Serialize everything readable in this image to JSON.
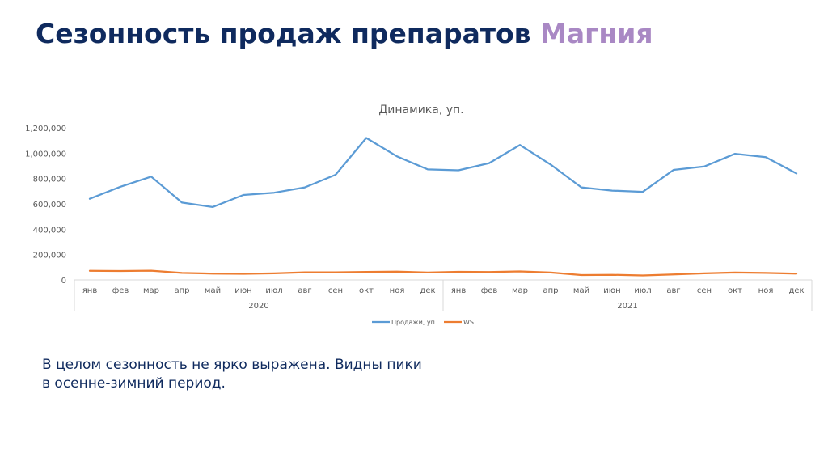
{
  "slide": {
    "title_main": "Сезонность продаж препаратов",
    "title_accent": "Магния",
    "note": "В целом сезонность не ярко выражена. Видны пики в осенне-зимний период."
  },
  "colors": {
    "title": "#0f2a5e",
    "accent": "#a988c4",
    "sales": "#5b9bd5",
    "ws": "#ed7d31"
  },
  "chart_data": {
    "type": "line",
    "title": "Динамика, уп.",
    "xlabel": "",
    "ylabel": "",
    "ylim": [
      0,
      1200000
    ],
    "yticks": [
      0,
      200000,
      400000,
      600000,
      800000,
      1000000,
      1200000
    ],
    "ytick_labels": [
      "0",
      "200,000",
      "400,000",
      "600,000",
      "800,000",
      "1,000,000",
      "1,200,000"
    ],
    "grid": false,
    "legend": "bottom",
    "categories": [
      "янв",
      "фев",
      "мар",
      "апр",
      "май",
      "июн",
      "июл",
      "авг",
      "сен",
      "окт",
      "ноя",
      "дек",
      "янв",
      "фев",
      "мар",
      "апр",
      "май",
      "июн",
      "июл",
      "авг",
      "сен",
      "окт",
      "ноя",
      "дек"
    ],
    "groups": [
      {
        "label": "2020",
        "count": 12
      },
      {
        "label": "2021",
        "count": 12
      }
    ],
    "series": [
      {
        "name": "Продажи, уп.",
        "color": "#5b9bd5",
        "values": [
          640000,
          735000,
          815000,
          610000,
          575000,
          670000,
          688000,
          730000,
          830000,
          1120000,
          975000,
          872000,
          865000,
          922000,
          1065000,
          910000,
          730000,
          705000,
          695000,
          868000,
          895000,
          995000,
          968000,
          840000
        ]
      },
      {
        "name": "WS",
        "color": "#ed7d31",
        "values": [
          72000,
          70000,
          73000,
          55000,
          50000,
          48000,
          52000,
          60000,
          60000,
          63000,
          66000,
          58000,
          64000,
          62000,
          67000,
          58000,
          38000,
          40000,
          35000,
          43000,
          52000,
          58000,
          55000,
          50000
        ]
      }
    ]
  }
}
